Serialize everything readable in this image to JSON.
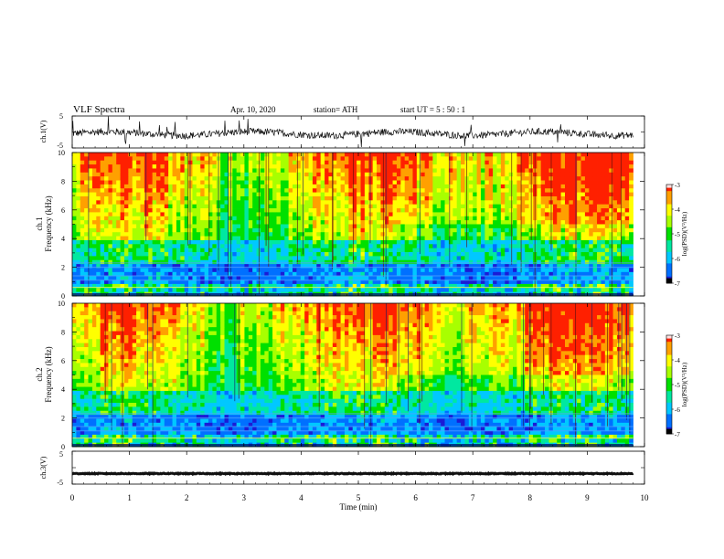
{
  "header": {
    "title": "VLF  Spectra",
    "date": "Apr. 10, 2020",
    "station": "station= ATH",
    "start_ut": "start  UT  =    5  : 50 : 1"
  },
  "colors": {
    "waveform": "#111111",
    "colormap": [
      "#000000",
      "#1b1bd6",
      "#00a0ff",
      "#00e0a0",
      "#00e000",
      "#b0ff00",
      "#ffff00",
      "#ffa000",
      "#ff0000",
      "#ffffff"
    ]
  },
  "chart_data": [
    {
      "type": "line",
      "panel": "ch1-waveform",
      "ylabel": "ch.1(V)",
      "ylim": [
        -5,
        5
      ],
      "yticks": [
        "5",
        "-5"
      ],
      "xlim": [
        0,
        10
      ],
      "x_data_end": 9.8,
      "series": [
        {
          "values": "noisy waveform centered near -0.5 V, amplitude about 1–3 V"
        }
      ]
    },
    {
      "type": "heatmap",
      "panel": "ch1-spectrogram",
      "ylabel_line1": "ch.1",
      "ylabel_line2": "Frequency  (kHz)",
      "ylim": [
        0,
        10
      ],
      "yticks": [
        "0",
        "2",
        "4",
        "6",
        "8",
        "10"
      ],
      "xlim": [
        0,
        10
      ],
      "x_data_end": 9.8,
      "colorbar": {
        "label": "log(PSD)(V²/Hz)",
        "range": [
          -7,
          -3
        ],
        "ticks": [
          "-3",
          "-4",
          "-5",
          "-6",
          "-7"
        ]
      }
    },
    {
      "type": "heatmap",
      "panel": "ch2-spectrogram",
      "ylabel_line1": "ch.2",
      "ylabel_line2": "Frequency  (kHz)",
      "ylim": [
        0,
        10
      ],
      "yticks": [
        "0",
        "2",
        "4",
        "6",
        "8",
        "10"
      ],
      "xlim": [
        0,
        10
      ],
      "x_data_end": 9.8,
      "colorbar": {
        "label": "log(PSD)(V²/Hz)",
        "range": [
          -7,
          -3
        ],
        "ticks": [
          "-3",
          "-4",
          "-5",
          "-6",
          "-7"
        ]
      }
    },
    {
      "type": "line",
      "panel": "ch3-waveform",
      "ylabel": "ch.3(V)",
      "ylim": [
        -5,
        5
      ],
      "yticks": [
        "5",
        "-5"
      ],
      "xlim": [
        0,
        10
      ],
      "x_data_end": 9.8,
      "series": [
        {
          "values": "flat trace near -1.8 V"
        }
      ]
    }
  ],
  "x_axis": {
    "label": "Time  (min)",
    "ticks": [
      "0",
      "1",
      "2",
      "3",
      "4",
      "5",
      "6",
      "7",
      "8",
      "9",
      "10"
    ]
  }
}
